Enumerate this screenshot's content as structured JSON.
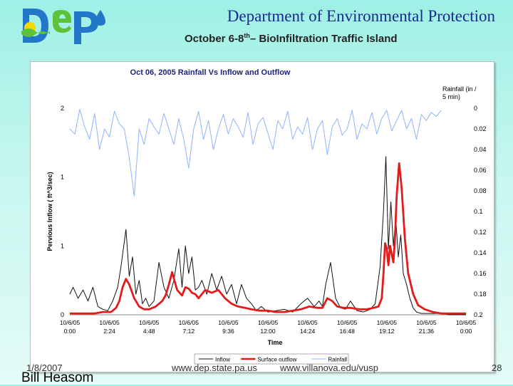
{
  "header": {
    "dept_title": "Department of Environmental Protection",
    "subtitle_pre": "October 6-8",
    "subtitle_sup": "th",
    "subtitle_post": "– BioInfiltration Traffic Island"
  },
  "footer": {
    "date": "1/8/2007",
    "author": "Bill Heasom",
    "url1": "www.dep.state.pa.us",
    "url2": "www.villanova.edu/vusp",
    "page": "28"
  },
  "colors": {
    "inflow": "#111111",
    "outflow": "#e21b1b",
    "rainfall": "#8fb4ff",
    "title": "#1a237e",
    "logo_blue": "#2277c9",
    "logo_green": "#5ec13a",
    "logo_sun": "#f5d800"
  },
  "chart_data": {
    "type": "line",
    "title": "Oct 06, 2005 Rainfall Vs Inflow and Outflow",
    "xlabel": "Time",
    "ylabel": "Pervious Inflow ( ft^3/sec)",
    "y2label": "Rainfall (in / 5 min)",
    "x_ticks": [
      [
        "10/6/05",
        "0:00"
      ],
      [
        "10/6/05",
        "2:24"
      ],
      [
        "10/6/05",
        "4:48"
      ],
      [
        "10/6/05",
        "7:12"
      ],
      [
        "10/6/05",
        "9:36"
      ],
      [
        "10/6/05",
        "12:00"
      ],
      [
        "10/6/05",
        "14:24"
      ],
      [
        "10/6/05",
        "16:48"
      ],
      [
        "10/6/05",
        "19:12"
      ],
      [
        "10/6/05",
        "21:36"
      ],
      [
        "10/6/05",
        "0:00"
      ]
    ],
    "xlim_hours": [
      0,
      24
    ],
    "y_ticks": [
      "0",
      "1",
      "1",
      "2"
    ],
    "y_tick_values": [
      0,
      0.5,
      1,
      1.5
    ],
    "ylim": [
      0,
      1.5
    ],
    "y2_ticks": [
      "0",
      "0.02",
      "0.04",
      "0.06",
      "0.08",
      "0.1",
      "0.12",
      "0.14",
      "0.16",
      "0.18",
      "0.2"
    ],
    "y2lim": [
      0,
      0.2
    ],
    "y2_reversed": true,
    "legend_position": "bottom",
    "series": [
      {
        "name": "Inflow",
        "x": [
          0,
          0.2,
          0.5,
          0.8,
          1.1,
          1.4,
          1.7,
          2,
          2.3,
          2.6,
          2.9,
          3.1,
          3.4,
          3.6,
          3.8,
          4,
          4.2,
          4.4,
          4.6,
          4.8,
          5.1,
          5.4,
          5.7,
          6,
          6.3,
          6.6,
          6.8,
          7,
          7.2,
          7.4,
          7.6,
          7.8,
          8,
          8.3,
          8.6,
          8.9,
          9.2,
          9.5,
          9.8,
          10.1,
          10.4,
          10.7,
          11,
          11.3,
          11.6,
          12,
          12.5,
          13,
          13.5,
          14,
          14.4,
          14.8,
          15.1,
          15.3,
          15.5,
          15.8,
          16.1,
          16.4,
          16.7,
          17,
          17.4,
          17.8,
          18.2,
          18.5,
          18.8,
          19,
          19.15,
          19.3,
          19.45,
          19.6,
          19.75,
          19.9,
          20.05,
          20.2,
          20.4,
          20.6,
          20.8,
          21,
          21.3,
          21.6,
          22,
          22.5,
          23,
          23.5,
          24
        ],
        "y": [
          0.15,
          0.2,
          0.12,
          0.18,
          0.1,
          0.2,
          0.06,
          0.04,
          0.03,
          0.1,
          0.2,
          0.35,
          0.62,
          0.28,
          0.42,
          0.15,
          0.25,
          0.08,
          0.12,
          0.06,
          0.1,
          0.38,
          0.2,
          0.12,
          0.25,
          0.48,
          0.2,
          0.5,
          0.3,
          0.42,
          0.18,
          0.2,
          0.25,
          0.15,
          0.3,
          0.18,
          0.28,
          0.15,
          0.22,
          0.08,
          0.22,
          0.12,
          0.08,
          0.03,
          0.06,
          0.02,
          0.03,
          0.04,
          0.02,
          0.08,
          0.12,
          0.06,
          0.1,
          0.06,
          0.22,
          0.38,
          0.12,
          0.05,
          0.04,
          0.1,
          0.03,
          0.02,
          0.04,
          0.08,
          0.35,
          0.75,
          1.15,
          0.48,
          0.82,
          0.5,
          0.7,
          0.42,
          0.58,
          0.3,
          0.22,
          0.12,
          0.05,
          0.02,
          0.01,
          0.01,
          0.01,
          0.01,
          0,
          0,
          0
        ]
      },
      {
        "name": "Surface outflow",
        "x": [
          0,
          0.5,
          1,
          1.5,
          2,
          2.5,
          2.8,
          3,
          3.2,
          3.4,
          3.6,
          3.9,
          4.2,
          4.5,
          4.8,
          5.2,
          5.6,
          5.8,
          6,
          6.2,
          6.5,
          6.8,
          7,
          7.2,
          7.4,
          7.6,
          7.8,
          8.2,
          8.6,
          9,
          9.4,
          9.8,
          10.2,
          10.6,
          11,
          11.5,
          12,
          12.5,
          13,
          13.5,
          14,
          14.5,
          15,
          15.3,
          15.6,
          15.9,
          16.2,
          16.6,
          17,
          17.5,
          18,
          18.4,
          18.7,
          18.9,
          19,
          19.1,
          19.2,
          19.3,
          19.4,
          19.5,
          19.6,
          19.7,
          19.8,
          19.95,
          20.1,
          20.3,
          20.5,
          20.8,
          21.1,
          21.5,
          22,
          22.5,
          23,
          23.5,
          24
        ],
        "y": [
          0.01,
          0.01,
          0.01,
          0.01,
          0.02,
          0.02,
          0.05,
          0.1,
          0.2,
          0.26,
          0.22,
          0.12,
          0.06,
          0.04,
          0.04,
          0.06,
          0.1,
          0.14,
          0.22,
          0.31,
          0.18,
          0.14,
          0.2,
          0.19,
          0.16,
          0.15,
          0.12,
          0.18,
          0.16,
          0.18,
          0.12,
          0.08,
          0.06,
          0.05,
          0.04,
          0.03,
          0.03,
          0.02,
          0.02,
          0.03,
          0.04,
          0.06,
          0.05,
          0.05,
          0.12,
          0.1,
          0.06,
          0.05,
          0.05,
          0.04,
          0.04,
          0.05,
          0.06,
          0.12,
          0.3,
          0.52,
          0.48,
          0.36,
          0.5,
          0.44,
          0.38,
          0.56,
          0.86,
          1.1,
          0.92,
          0.55,
          0.3,
          0.15,
          0.07,
          0.04,
          0.02,
          0.01,
          0.01,
          0.01,
          0.01
        ]
      },
      {
        "name": "Rainfall",
        "x": [
          0,
          0.3,
          0.6,
          0.9,
          1.2,
          1.5,
          1.8,
          2.1,
          2.4,
          2.7,
          3,
          3.3,
          3.6,
          3.9,
          4.2,
          4.5,
          4.8,
          5.1,
          5.4,
          5.7,
          6,
          6.3,
          6.6,
          6.9,
          7.2,
          7.5,
          7.8,
          8.1,
          8.4,
          8.7,
          9,
          9.3,
          9.6,
          9.9,
          10.2,
          10.5,
          10.8,
          11.1,
          11.4,
          11.7,
          12,
          12.3,
          12.6,
          12.9,
          13.2,
          13.5,
          13.8,
          14.1,
          14.4,
          14.7,
          15,
          15.3,
          15.6,
          15.9,
          16.2,
          16.5,
          16.8,
          17.1,
          17.4,
          17.7,
          18,
          18.3,
          18.6,
          18.9,
          19.2,
          19.5,
          19.8,
          20.1,
          20.4,
          20.7,
          21,
          21.3,
          21.6,
          21.9,
          22.2,
          22.5
        ],
        "y": [
          0.02,
          0.025,
          0.001,
          0.018,
          0.03,
          0.005,
          0.04,
          0.02,
          0.028,
          0.003,
          0.015,
          0.02,
          0.048,
          0.085,
          0.02,
          0.035,
          0.01,
          0.018,
          0.025,
          0.005,
          0.02,
          0.035,
          0.01,
          0.03,
          0.058,
          0.02,
          0.003,
          0.03,
          0.012,
          0.04,
          0.02,
          0.006,
          0.025,
          0.01,
          0.018,
          0.028,
          0.004,
          0.035,
          0.015,
          0.009,
          0.024,
          0.04,
          0.012,
          0.02,
          0.003,
          0.03,
          0.018,
          0.025,
          0.009,
          0.04,
          0.02,
          0.012,
          0.045,
          0.018,
          0.01,
          0.026,
          0.02,
          0.002,
          0.03,
          0.015,
          0.02,
          0.004,
          0.025,
          0.01,
          0.002,
          0.022,
          0.012,
          0.002,
          0.02,
          0.01,
          0.03,
          0.006,
          0.012,
          0.004,
          0.008,
          0.002
        ]
      }
    ]
  }
}
